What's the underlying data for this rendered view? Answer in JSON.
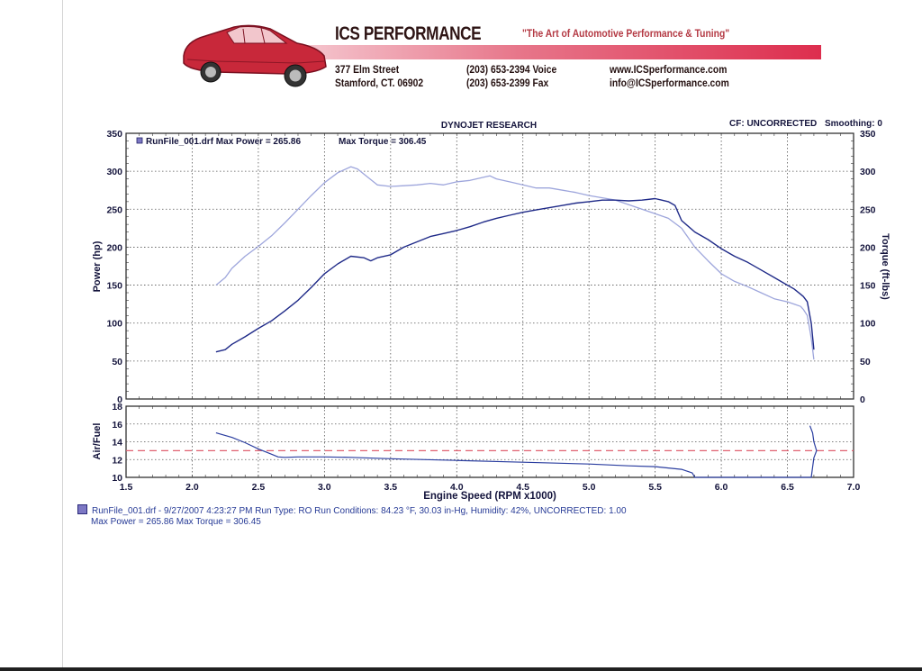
{
  "header": {
    "company": "ICS PERFORMANCE",
    "tagline": "\"The Art of Automotive Performance & Tuning\"",
    "street": "377 Elm Street",
    "city": "Stamford, CT. 06902",
    "phone_voice": "(203) 653-2394 Voice",
    "phone_fax": "(203) 653-2399 Fax",
    "website": "www.ICSperformance.com",
    "email": "info@ICSperformance.com"
  },
  "chart_header": {
    "title": "DYNOJET RESEARCH",
    "cf": "CF: UNCORRECTED",
    "smoothing": "Smoothing: 0",
    "legend": "RunFile_001.drf Max Power = 265.86",
    "legend_torque": "Max Torque = 306.45"
  },
  "footer": {
    "line1": "RunFile_001.drf - 9/27/2007 4:23:27 PM  Run Type: RO  Run Conditions: 84.23 °F, 30.03 in-Hg,  Humidity:  42%, UNCORRECTED: 1.00",
    "line2": "Max Power = 265.86  Max Torque = 306.45"
  },
  "colors": {
    "power": "#1f2a88",
    "torque": "#9ea6dc",
    "afr": "#2b3ea0",
    "afr_target": "#e06070",
    "legend_swatch": "#7d78c4"
  },
  "chart_data": [
    {
      "type": "line",
      "xlabel": "Engine Speed (RPM x1000)",
      "ylabel": "Power (hp)",
      "y2label": "Torque (ft-lbs)",
      "xlim": [
        1.5,
        7.0
      ],
      "ylim": [
        0,
        350
      ],
      "y2lim": [
        0,
        350
      ],
      "xticks": [
        "1.5",
        "2.0",
        "2.5",
        "3.0",
        "3.5",
        "4.0",
        "4.5",
        "5.0",
        "5.5",
        "6.0",
        "6.5",
        "7.0"
      ],
      "yticks": [
        "0",
        "50",
        "100",
        "150",
        "200",
        "250",
        "300",
        "350"
      ],
      "grid": true,
      "legend_position": "top-left",
      "series": [
        {
          "key": "power",
          "x": [
            2.18,
            2.25,
            2.3,
            2.4,
            2.5,
            2.6,
            2.7,
            2.8,
            2.9,
            3.0,
            3.1,
            3.2,
            3.3,
            3.35,
            3.4,
            3.5,
            3.6,
            3.7,
            3.8,
            3.9,
            4.0,
            4.1,
            4.2,
            4.3,
            4.4,
            4.5,
            4.6,
            4.7,
            4.8,
            4.9,
            5.0,
            5.1,
            5.2,
            5.3,
            5.4,
            5.5,
            5.55,
            5.6,
            5.65,
            5.7,
            5.8,
            5.9,
            6.0,
            6.1,
            6.2,
            6.3,
            6.4,
            6.5,
            6.55,
            6.6,
            6.62,
            6.65,
            6.68,
            6.7
          ],
          "values": [
            62,
            65,
            72,
            82,
            93,
            103,
            116,
            130,
            147,
            165,
            178,
            188,
            186,
            182,
            186,
            190,
            200,
            207,
            214,
            218,
            222,
            227,
            233,
            238,
            242,
            246,
            249,
            252,
            255,
            258,
            260,
            262,
            262,
            261,
            262,
            264,
            262,
            260,
            255,
            235,
            220,
            210,
            198,
            188,
            180,
            170,
            160,
            150,
            145,
            138,
            135,
            128,
            100,
            65
          ]
        },
        {
          "key": "torque",
          "x": [
            2.18,
            2.25,
            2.3,
            2.4,
            2.5,
            2.6,
            2.7,
            2.8,
            2.9,
            3.0,
            3.1,
            3.2,
            3.25,
            3.3,
            3.4,
            3.5,
            3.6,
            3.7,
            3.8,
            3.9,
            4.0,
            4.1,
            4.2,
            4.25,
            4.3,
            4.4,
            4.5,
            4.6,
            4.7,
            4.8,
            4.9,
            5.0,
            5.1,
            5.2,
            5.3,
            5.4,
            5.5,
            5.6,
            5.7,
            5.8,
            5.9,
            6.0,
            6.1,
            6.2,
            6.3,
            6.4,
            6.5,
            6.55,
            6.6,
            6.62,
            6.65,
            6.68,
            6.7
          ],
          "values": [
            150,
            160,
            172,
            188,
            201,
            215,
            232,
            250,
            268,
            285,
            298,
            306,
            303,
            296,
            282,
            280,
            281,
            282,
            284,
            282,
            286,
            288,
            292,
            294,
            290,
            286,
            282,
            278,
            278,
            275,
            272,
            268,
            265,
            262,
            256,
            250,
            244,
            238,
            225,
            200,
            182,
            165,
            155,
            148,
            140,
            132,
            128,
            125,
            122,
            118,
            110,
            80,
            52
          ]
        }
      ]
    },
    {
      "type": "line",
      "ylabel": "Air/Fuel",
      "xlim": [
        1.5,
        7.0
      ],
      "ylim": [
        10,
        18
      ],
      "yticks": [
        "10",
        "12",
        "14",
        "16",
        "18"
      ],
      "grid": true,
      "target_value": 13,
      "series": [
        {
          "key": "afr",
          "x": [
            2.18,
            2.3,
            2.4,
            2.5,
            2.6,
            2.65,
            2.7,
            2.8,
            3.0,
            3.2,
            3.5,
            4.0,
            4.5,
            5.0,
            5.3,
            5.5,
            5.7,
            5.78,
            5.8,
            6.6,
            6.68,
            6.7,
            6.72,
            6.7,
            6.69,
            6.67
          ],
          "values": [
            15.0,
            14.5,
            13.9,
            13.2,
            12.6,
            12.3,
            12.25,
            12.3,
            12.3,
            12.25,
            12.1,
            11.9,
            11.7,
            11.5,
            11.3,
            11.2,
            10.9,
            10.5,
            10.0,
            10.0,
            10.0,
            12.2,
            13.0,
            14.0,
            15.0,
            15.8
          ]
        }
      ]
    }
  ]
}
